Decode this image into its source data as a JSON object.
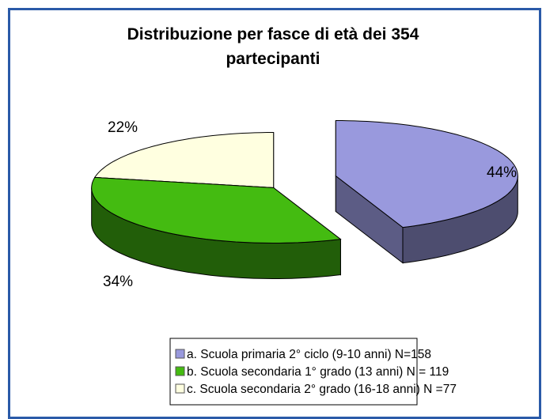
{
  "chart_data": {
    "type": "pie",
    "title": "Distribuzione per fasce di età dei 354 partecipanti",
    "categories": [
      "a. Scuola primaria 2° ciclo (9-10 anni) N=158",
      "b. Scuola secondaria 1° grado (13 anni) N = 119",
      "c. Scuola secondaria 2° grado (16-18 anni) N =77"
    ],
    "values": [
      44,
      34,
      22
    ],
    "value_labels": [
      "44%",
      "34%",
      "22%"
    ],
    "colors": [
      "#9999dd",
      "#44bb11",
      "#ffffe0"
    ]
  }
}
